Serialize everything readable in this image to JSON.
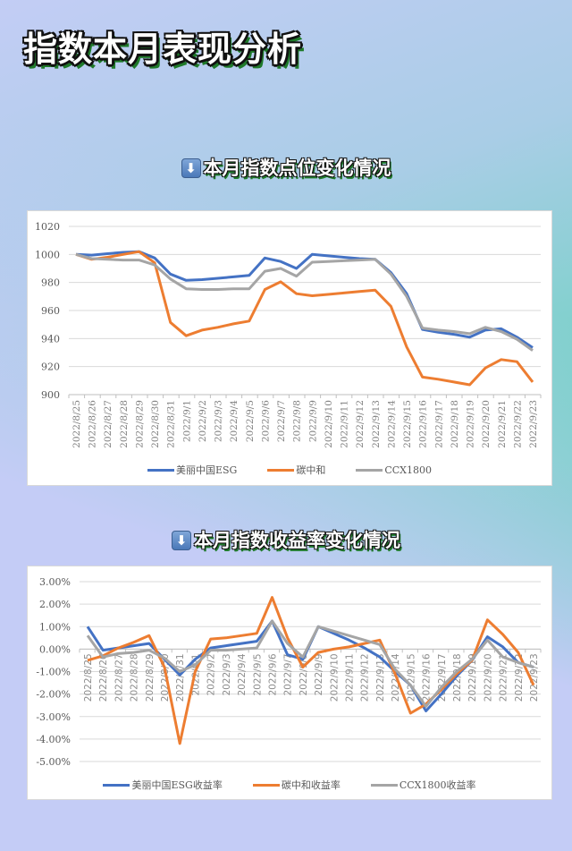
{
  "page": {
    "title": "指数本月表现分析",
    "section1_title": "本月指数点位变化情况",
    "section2_title": "本月指数收益率变化情况",
    "arrow_icon": "⬇"
  },
  "colors": {
    "blue": "#4472c4",
    "orange": "#ed7d31",
    "gray": "#a5a5a5",
    "grid": "#d9d9d9",
    "axis_text": "#595959"
  },
  "chart_data": [
    {
      "type": "line",
      "title": "本月指数点位变化情况",
      "xlabel": "",
      "ylabel": "",
      "ylim": [
        900,
        1020
      ],
      "yticks": [
        900,
        920,
        940,
        960,
        980,
        1000,
        1020
      ],
      "ytick_labels": [
        "900",
        "920",
        "940",
        "960",
        "980",
        "1000",
        "1020"
      ],
      "grid": true,
      "legend_position": "bottom",
      "categories": [
        "2022/8/25",
        "2022/8/26",
        "2022/8/27",
        "2022/8/28",
        "2022/8/29",
        "2022/8/30",
        "2022/8/31",
        "2022/9/1",
        "2022/9/2",
        "2022/9/3",
        "2022/9/4",
        "2022/9/5",
        "2022/9/6",
        "2022/9/7",
        "2022/9/8",
        "2022/9/9",
        "2022/9/10",
        "2022/9/11",
        "2022/9/12",
        "2022/9/13",
        "2022/9/14",
        "2022/9/15",
        "2022/9/16",
        "2022/9/17",
        "2022/9/18",
        "2022/9/19",
        "2022/9/20",
        "2022/9/21",
        "2022/9/22",
        "2022/9/23"
      ],
      "series": [
        {
          "name": "美丽中国ESG",
          "color": "#4472c4",
          "values": [
            1000,
            999.5,
            1000.5,
            1001.5,
            1002,
            997.5,
            986,
            981.5,
            982,
            983,
            984,
            985,
            997.5,
            995,
            990,
            1000,
            999,
            998,
            997,
            996.5,
            987,
            972,
            946.5,
            944.5,
            943,
            941,
            946,
            947,
            941,
            933.5
          ]
        },
        {
          "name": "碳中和",
          "color": "#ed7d31",
          "values": [
            1000,
            996.5,
            998,
            1000,
            1002,
            994,
            951.5,
            942,
            946,
            948,
            950.5,
            952.5,
            975,
            980.5,
            972,
            970.5,
            971.5,
            972.5,
            973.5,
            974.5,
            963,
            934,
            912.5,
            911,
            909,
            907,
            919,
            925,
            923.5,
            909
          ]
        },
        {
          "name": "CCX1800",
          "color": "#a5a5a5",
          "values": [
            1000,
            997,
            996.5,
            996,
            996,
            992.5,
            982.5,
            975.5,
            975,
            975,
            975.5,
            975.5,
            988,
            990,
            984.5,
            994.5,
            995,
            995.5,
            996,
            996.5,
            986,
            970,
            947.5,
            946,
            945,
            943.5,
            948,
            945,
            939.5,
            931.5
          ]
        }
      ]
    },
    {
      "type": "line",
      "title": "本月指数收益率变化情况",
      "xlabel": "",
      "ylabel": "",
      "ylim": [
        -5,
        3
      ],
      "yticks": [
        -5,
        -4,
        -3,
        -2,
        -1,
        0,
        1,
        2,
        3
      ],
      "ytick_labels": [
        "-5.00%",
        "-4.00%",
        "-3.00%",
        "-2.00%",
        "-1.00%",
        "0.00%",
        "1.00%",
        "2.00%",
        "3.00%"
      ],
      "grid": true,
      "legend_position": "bottom",
      "categories": [
        "2022/8/25",
        "2022/8/26",
        "2022/8/27",
        "2022/8/28",
        "2022/8/29",
        "2022/8/30",
        "2022/8/31",
        "2022/9/1",
        "2022/9/2",
        "2022/9/3",
        "2022/9/4",
        "2022/9/5",
        "2022/9/6",
        "2022/9/7",
        "2022/9/8",
        "2022/9/9",
        "2022/9/10",
        "2022/9/11",
        "2022/9/12",
        "2022/9/13",
        "2022/9/14",
        "2022/9/15",
        "2022/9/16",
        "2022/9/17",
        "2022/9/18",
        "2022/9/19",
        "2022/9/20",
        "2022/9/21",
        "2022/9/22",
        "2022/9/23"
      ],
      "series": [
        {
          "name": "美丽中国ESG收益率",
          "color": "#4472c4",
          "values": [
            1.0,
            -0.05,
            0.05,
            0.15,
            0.25,
            -0.45,
            -1.15,
            -0.45,
            0.05,
            0.15,
            0.25,
            0.35,
            1.25,
            -0.25,
            -0.45,
            1.0,
            0.7,
            0.4,
            0.05,
            -0.35,
            -1.0,
            -1.6,
            -2.75,
            -2.0,
            -1.2,
            -0.5,
            0.55,
            0.1,
            -0.6,
            -0.8
          ]
        },
        {
          "name": "碳中和收益率",
          "color": "#ed7d31",
          "values": [
            -0.5,
            -0.3,
            0.05,
            0.3,
            0.6,
            -0.8,
            -4.2,
            -1.0,
            0.45,
            0.5,
            0.6,
            0.7,
            2.3,
            0.5,
            -0.8,
            -0.15,
            0.0,
            0.1,
            0.25,
            0.4,
            -1.1,
            -2.85,
            -2.45,
            -1.8,
            -1.1,
            -0.5,
            1.3,
            0.65,
            -0.15,
            -1.6
          ]
        },
        {
          "name": "CCX1800收益率",
          "color": "#a5a5a5",
          "values": [
            0.6,
            -0.35,
            -0.2,
            -0.15,
            -0.05,
            -0.4,
            -1.0,
            -0.7,
            -0.05,
            -0.05,
            0.0,
            0.05,
            1.25,
            0.25,
            -0.35,
            1.0,
            0.8,
            0.6,
            0.4,
            0.2,
            -0.9,
            -1.6,
            -2.55,
            -1.7,
            -1.0,
            -0.45,
            0.4,
            -0.35,
            -0.6,
            -0.8
          ]
        }
      ]
    }
  ]
}
